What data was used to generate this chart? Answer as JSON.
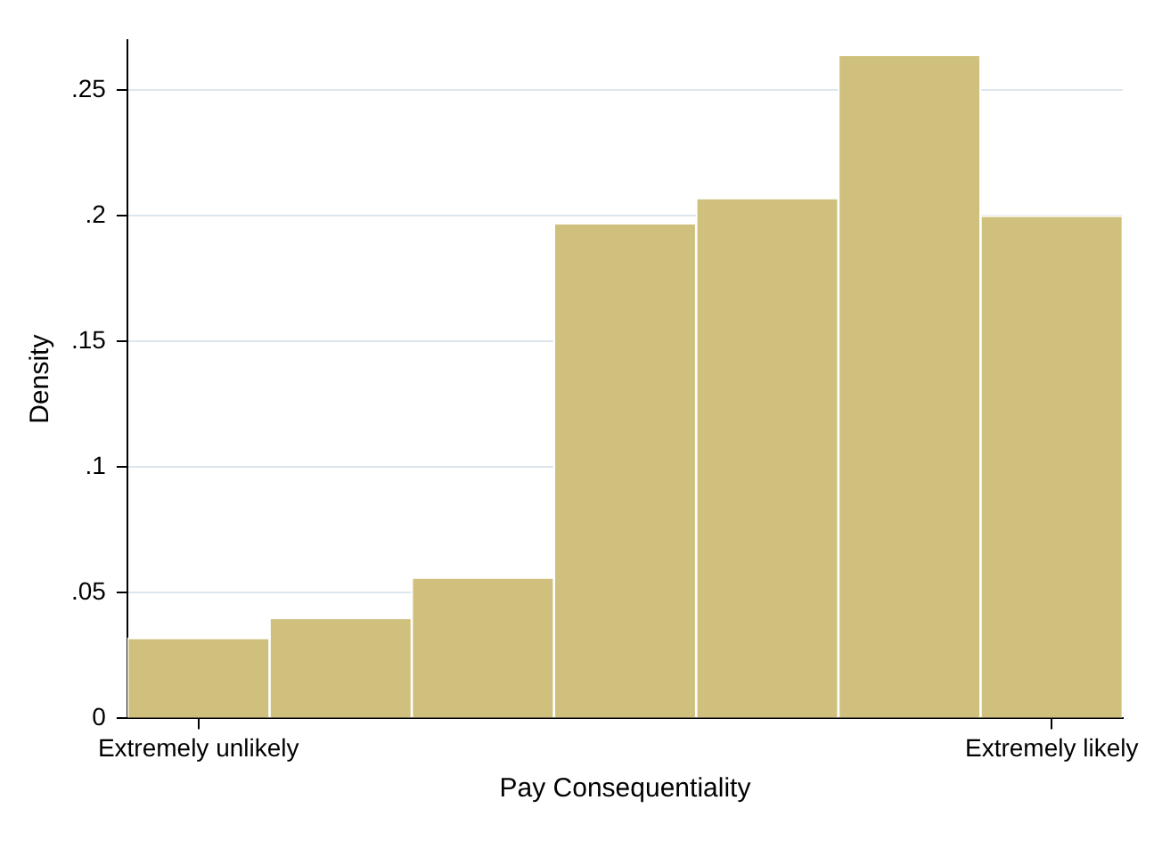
{
  "chart_data": {
    "type": "bar",
    "xlabel": "Pay Consequentiality",
    "ylabel": "Density",
    "categories": [
      "Extremely unlikely",
      null,
      null,
      null,
      null,
      null,
      "Extremely likely"
    ],
    "values": [
      0.032,
      0.04,
      0.056,
      0.197,
      0.207,
      0.264,
      0.2
    ],
    "color": "#cfc07e",
    "ylim": [
      0,
      0.27
    ],
    "yticks": [
      0,
      {
        "value": 0.05,
        "label": ".05"
      },
      {
        "value": 0.1,
        "label": ".1"
      },
      {
        "value": 0.15,
        "label": ".15"
      },
      {
        "value": 0.2,
        "label": ".2"
      },
      {
        "value": 0.25,
        "label": ".25"
      }
    ],
    "grid": "y",
    "legend": false
  }
}
